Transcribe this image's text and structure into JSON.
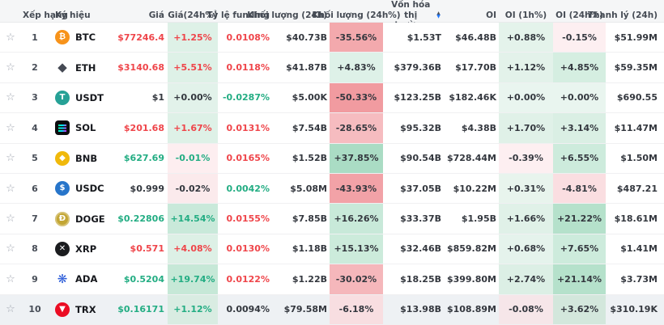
{
  "table": {
    "colors": {
      "red_text": "#ef454a",
      "green_text": "#23ad83",
      "dark_text": "#33373e",
      "header_bg": "#f5f6f7",
      "highlight_row_bg": "#eef1f4",
      "sort_active": "#2079ff"
    },
    "columns": [
      {
        "id": "favorite",
        "label": ""
      },
      {
        "id": "rank",
        "label": "Xếp hạng"
      },
      {
        "id": "symbol",
        "label": "Ký hiệu"
      },
      {
        "id": "price",
        "label": "Giá"
      },
      {
        "id": "chg24",
        "label": "Giá(24h%)"
      },
      {
        "id": "funding",
        "label": "Tỷ lệ funding"
      },
      {
        "id": "vol24",
        "label": "Khối lượng (24h)"
      },
      {
        "id": "vol24pct",
        "label": "Khối lượng (24h%)"
      },
      {
        "id": "mcap",
        "label": "Vốn hóa thị trường",
        "sorted": "desc"
      },
      {
        "id": "oi",
        "label": "OI"
      },
      {
        "id": "oi1h",
        "label": "OI (1h%)"
      },
      {
        "id": "oi24h",
        "label": "OI (24h%)"
      },
      {
        "id": "liq",
        "label": "Thanh lý (24h)"
      }
    ],
    "rows": [
      {
        "rank": "1",
        "coin": "BTC",
        "icon": {
          "name": "btc-icon",
          "glyph": "₿",
          "bg": "#f7931a",
          "fg": "#ffffff"
        },
        "price": {
          "text": "$77246.4",
          "color": "red"
        },
        "chg24": {
          "text": "+1.25%",
          "color": "red",
          "bg": "#def1e7"
        },
        "funding": {
          "text": "0.0108%",
          "color": "red"
        },
        "vol24": "$40.73B",
        "vol24pct": {
          "text": "-35.56%",
          "bg": "#f3a9ad"
        },
        "mcap": "$1.53T",
        "oi": "$46.48B",
        "oi1h": {
          "text": "+0.88%",
          "bg": "#e4f3eb"
        },
        "oi24h": {
          "text": "-0.15%",
          "bg": "#fdeff1"
        },
        "liq": "$51.99M",
        "highlight": false
      },
      {
        "rank": "2",
        "coin": "ETH",
        "icon": {
          "name": "eth-icon",
          "glyph": "◆",
          "bg": "",
          "fg": "#454a54",
          "shape": "plain"
        },
        "price": {
          "text": "$3140.68",
          "color": "red"
        },
        "chg24": {
          "text": "+5.51%",
          "color": "red",
          "bg": "#def1e7"
        },
        "funding": {
          "text": "0.0118%",
          "color": "red"
        },
        "vol24": "$41.87B",
        "vol24pct": {
          "text": "+4.83%",
          "bg": "#def1e8"
        },
        "mcap": "$379.36B",
        "oi": "$17.70B",
        "oi1h": {
          "text": "+1.12%",
          "bg": "#e3f2ea"
        },
        "oi24h": {
          "text": "+4.85%",
          "bg": "#d5eee1"
        },
        "liq": "$59.35M",
        "highlight": false
      },
      {
        "rank": "3",
        "coin": "USDT",
        "icon": {
          "name": "usdt-icon",
          "glyph": "T",
          "bg": "#26a196",
          "fg": "#ffffff"
        },
        "price": {
          "text": "$1",
          "color": "dark"
        },
        "chg24": {
          "text": "+0.00%",
          "color": "dark",
          "bg": "#e2f2ea"
        },
        "funding": {
          "text": "-0.0287%",
          "color": "green"
        },
        "vol24": "$5.00K",
        "vol24pct": {
          "text": "-50.33%",
          "bg": "#f19ba0"
        },
        "mcap": "$123.25B",
        "oi": "$182.46K",
        "oi1h": {
          "text": "+0.00%",
          "bg": "#e9f5ef"
        },
        "oi24h": {
          "text": "+0.00%",
          "bg": "#e9f5ef"
        },
        "liq": "$690.55",
        "highlight": false
      },
      {
        "rank": "4",
        "coin": "SOL",
        "icon": {
          "name": "sol-icon",
          "glyph": "",
          "bg": "#0c0d10",
          "fg": "",
          "shape": "sol"
        },
        "price": {
          "text": "$201.68",
          "color": "red"
        },
        "chg24": {
          "text": "+1.67%",
          "color": "red",
          "bg": "#def1e7"
        },
        "funding": {
          "text": "0.0131%",
          "color": "red"
        },
        "vol24": "$7.54B",
        "vol24pct": {
          "text": "-28.65%",
          "bg": "#f6bcc0"
        },
        "mcap": "$95.32B",
        "oi": "$4.38B",
        "oi1h": {
          "text": "+1.70%",
          "bg": "#e0f1e8"
        },
        "oi24h": {
          "text": "+3.14%",
          "bg": "#daefe4"
        },
        "liq": "$11.47M",
        "highlight": false
      },
      {
        "rank": "5",
        "coin": "BNB",
        "icon": {
          "name": "bnb-icon",
          "glyph": "◆",
          "bg": "#f0b90b",
          "fg": "#ffffff"
        },
        "price": {
          "text": "$627.69",
          "color": "green"
        },
        "chg24": {
          "text": "-0.01%",
          "color": "green",
          "bg": "#fdeef0"
        },
        "funding": {
          "text": "0.0165%",
          "color": "red"
        },
        "vol24": "$1.52B",
        "vol24pct": {
          "text": "+37.85%",
          "bg": "#aadcc4"
        },
        "mcap": "$90.54B",
        "oi": "$728.44M",
        "oi1h": {
          "text": "-0.39%",
          "bg": "#fdeff1"
        },
        "oi24h": {
          "text": "+6.55%",
          "bg": "#cdebdc"
        },
        "liq": "$1.50M",
        "highlight": false
      },
      {
        "rank": "6",
        "coin": "USDC",
        "icon": {
          "name": "usdc-icon",
          "glyph": "$",
          "bg": "#2775ca",
          "fg": "#ffffff"
        },
        "price": {
          "text": "$0.999",
          "color": "dark"
        },
        "chg24": {
          "text": "-0.02%",
          "color": "dark",
          "bg": "#fbeaec"
        },
        "funding": {
          "text": "0.0042%",
          "color": "green"
        },
        "vol24": "$5.08M",
        "vol24pct": {
          "text": "-43.93%",
          "bg": "#f2a2a7"
        },
        "mcap": "$37.05B",
        "oi": "$10.22M",
        "oi1h": {
          "text": "+0.31%",
          "bg": "#e8f4ed"
        },
        "oi24h": {
          "text": "-4.81%",
          "bg": "#fadee1"
        },
        "liq": "$487.21",
        "highlight": false
      },
      {
        "rank": "7",
        "coin": "DOGE",
        "icon": {
          "name": "doge-icon",
          "glyph": "Ð",
          "bg": "#c3a634",
          "fg": "#ffffff",
          "shape": "ring"
        },
        "price": {
          "text": "$0.22806",
          "color": "green"
        },
        "chg24": {
          "text": "+14.54%",
          "color": "green",
          "bg": "#c9e9da"
        },
        "funding": {
          "text": "0.0155%",
          "color": "red"
        },
        "vol24": "$7.85B",
        "vol24pct": {
          "text": "+16.26%",
          "bg": "#c8e9d9"
        },
        "mcap": "$33.37B",
        "oi": "$1.95B",
        "oi1h": {
          "text": "+1.66%",
          "bg": "#e0f1e8"
        },
        "oi24h": {
          "text": "+21.22%",
          "bg": "#b5e1cb"
        },
        "liq": "$18.61M",
        "highlight": false
      },
      {
        "rank": "8",
        "coin": "XRP",
        "icon": {
          "name": "xrp-icon",
          "glyph": "✕",
          "bg": "#1b1c1f",
          "fg": "#ffffff"
        },
        "price": {
          "text": "$0.571",
          "color": "red"
        },
        "chg24": {
          "text": "+4.08%",
          "color": "red",
          "bg": "#ddf0e6"
        },
        "funding": {
          "text": "0.0130%",
          "color": "red"
        },
        "vol24": "$1.18B",
        "vol24pct": {
          "text": "+15.13%",
          "bg": "#ccebdb"
        },
        "mcap": "$32.46B",
        "oi": "$859.82M",
        "oi1h": {
          "text": "+0.68%",
          "bg": "#e5f3ec"
        },
        "oi24h": {
          "text": "+7.65%",
          "bg": "#cdebdc"
        },
        "liq": "$1.41M",
        "highlight": false
      },
      {
        "rank": "9",
        "coin": "ADA",
        "icon": {
          "name": "ada-icon",
          "glyph": "❋",
          "bg": "",
          "fg": "#2b5cd9",
          "shape": "plain"
        },
        "price": {
          "text": "$0.5204",
          "color": "green"
        },
        "chg24": {
          "text": "+19.74%",
          "color": "green",
          "bg": "#c6e8d7"
        },
        "funding": {
          "text": "0.0122%",
          "color": "red"
        },
        "vol24": "$1.22B",
        "vol24pct": {
          "text": "-30.02%",
          "bg": "#f5b7bb"
        },
        "mcap": "$18.25B",
        "oi": "$399.80M",
        "oi1h": {
          "text": "+2.74%",
          "bg": "#dcefe5"
        },
        "oi24h": {
          "text": "+21.14%",
          "bg": "#b5e1cb"
        },
        "liq": "$3.73M",
        "highlight": false
      },
      {
        "rank": "10",
        "coin": "TRX",
        "icon": {
          "name": "trx-icon",
          "glyph": "▼",
          "bg": "#eb0c23",
          "fg": "#ffffff"
        },
        "price": {
          "text": "$0.16171",
          "color": "green"
        },
        "chg24": {
          "text": "+1.12%",
          "color": "green",
          "bg": "#d9ece2"
        },
        "funding": {
          "text": "0.0094%",
          "color": "dark"
        },
        "vol24": "$79.58M",
        "vol24pct": {
          "text": "-6.18%",
          "bg": "#f8dee1"
        },
        "mcap": "$13.98B",
        "oi": "$108.89M",
        "oi1h": {
          "text": "-0.08%",
          "bg": "#f6e6e9"
        },
        "oi24h": {
          "text": "+3.62%",
          "bg": "#d3e7dc"
        },
        "liq": "$310.19K",
        "highlight": true
      }
    ]
  }
}
